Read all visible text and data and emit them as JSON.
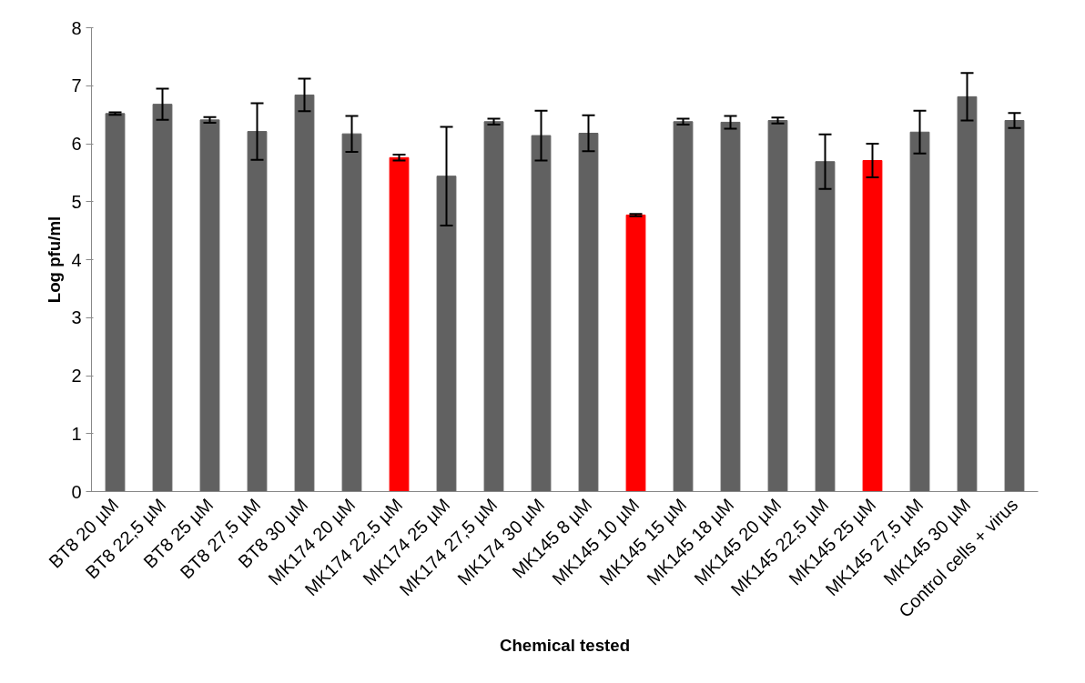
{
  "chart_data": {
    "type": "bar",
    "xlabel": "Chemical tested",
    "ylabel": "Log pfu/ml",
    "categories": [
      "BT8 20 µM",
      "BT8 22,5 µM",
      "BT8 25 µM",
      "BT8 27,5 µM",
      "BT8 30 µM",
      "MK174 20 µM",
      "MK174 22,5 µM",
      "MK174 25 µM",
      "MK174 27,5 µM",
      "MK174 30 µM",
      "MK145 8 µM",
      "MK145 10 µM",
      "MK145 15 µM",
      "MK145 18 µM",
      "MK145 20 µM",
      "MK145 22,5 µM",
      "MK145 25 µM",
      "MK145 27,5 µM",
      "MK145 30 µM",
      "Control cells + virus"
    ],
    "values": [
      6.52,
      6.68,
      6.41,
      6.21,
      6.84,
      6.17,
      5.76,
      5.44,
      6.38,
      6.14,
      6.18,
      4.77,
      6.38,
      6.37,
      6.4,
      5.69,
      5.71,
      6.2,
      6.81,
      6.4
    ],
    "errors": [
      0.02,
      0.27,
      0.05,
      0.49,
      0.28,
      0.31,
      0.05,
      0.85,
      0.05,
      0.43,
      0.31,
      0.02,
      0.05,
      0.11,
      0.05,
      0.47,
      0.29,
      0.37,
      0.41,
      0.13
    ],
    "colors": [
      "#616161",
      "#616161",
      "#616161",
      "#616161",
      "#616161",
      "#616161",
      "#ff0000",
      "#616161",
      "#616161",
      "#616161",
      "#616161",
      "#ff0000",
      "#616161",
      "#616161",
      "#616161",
      "#616161",
      "#ff0000",
      "#616161",
      "#616161",
      "#616161"
    ],
    "ylim": [
      0,
      8
    ],
    "yticks": [
      0,
      1,
      2,
      3,
      4,
      5,
      6,
      7,
      8
    ],
    "grid": false
  }
}
